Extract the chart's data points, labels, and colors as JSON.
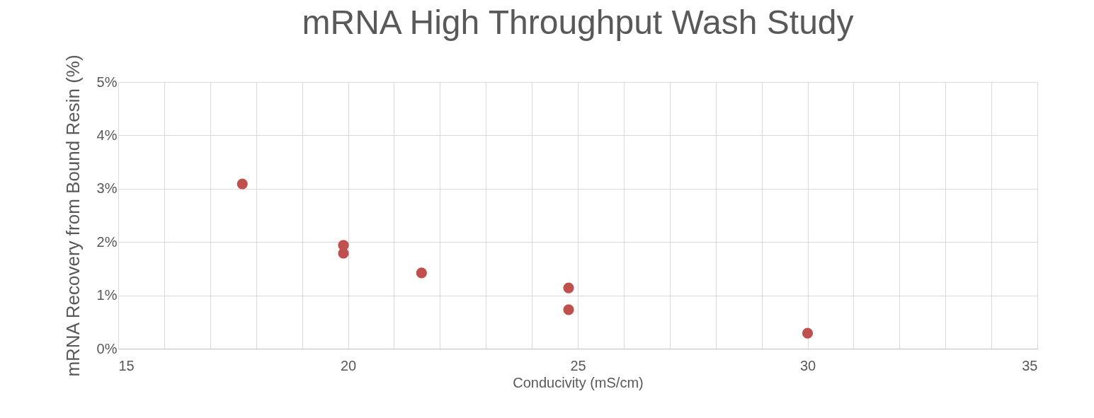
{
  "chart_data": {
    "type": "scatter",
    "title": "mRNA High Throughput Wash Study",
    "xlabel": "Conducivity (mS/cm)",
    "ylabel": "mRNA Recovery from Bound Resin (%)",
    "x": [
      17.7,
      19.9,
      19.9,
      21.6,
      24.8,
      24.8,
      30.0
    ],
    "series": [
      {
        "color": "#c0504d",
        "values": [
          3.09,
          1.94,
          1.79,
          1.42,
          1.14,
          0.73,
          0.29
        ]
      }
    ],
    "xlim": [
      15,
      35
    ],
    "xticks": [
      15,
      {
        "value": 16,
        "label": null
      },
      {
        "value": 17,
        "label": null
      },
      {
        "value": 18,
        "label": null
      },
      {
        "value": 19,
        "label": null
      },
      20,
      {
        "value": 21,
        "label": null
      },
      {
        "value": 22,
        "label": null
      },
      {
        "value": 23,
        "label": null
      },
      {
        "value": 24,
        "label": null
      },
      25,
      {
        "value": 26,
        "label": null
      },
      {
        "value": 27,
        "label": null
      },
      {
        "value": 28,
        "label": null
      },
      {
        "value": 29,
        "label": null
      },
      30,
      {
        "value": 31,
        "label": null
      },
      {
        "value": 32,
        "label": null
      },
      {
        "value": 33,
        "label": null
      },
      {
        "value": 34,
        "label": null
      },
      35
    ],
    "ylim": [
      0,
      5
    ],
    "yticks": [
      {
        "value": 0,
        "label": "0%"
      },
      {
        "value": 1,
        "label": "1%"
      },
      {
        "value": 2,
        "label": "2%"
      },
      {
        "value": 3,
        "label": "3%"
      },
      {
        "value": 4,
        "label": "4%"
      },
      {
        "value": 5,
        "label": "5%"
      }
    ],
    "grid": true,
    "marker": "circle"
  }
}
